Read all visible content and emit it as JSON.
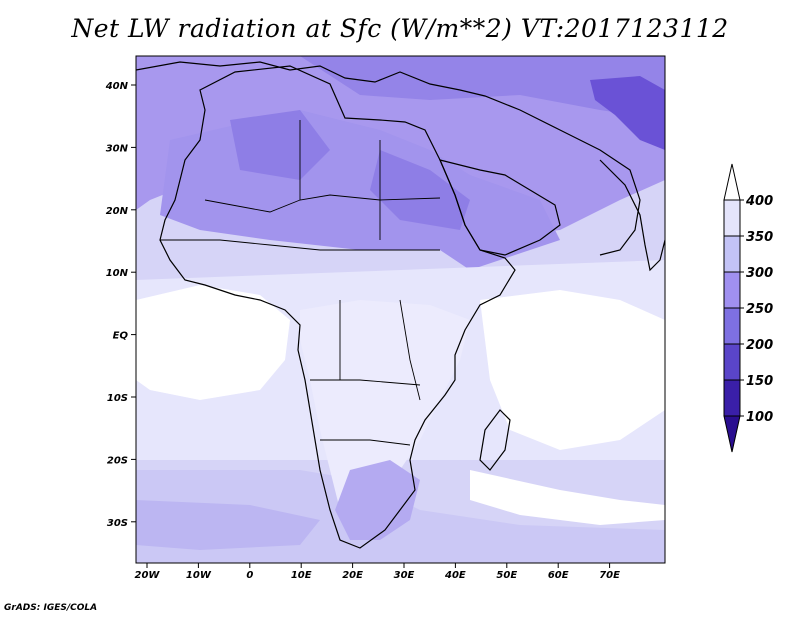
{
  "title": "Net LW radiation at Sfc (W/m**2) VT:2017123112",
  "credit": "GrADS: IGES/COLA",
  "map": {
    "lon_labels": [
      "20W",
      "10W",
      "0",
      "10E",
      "20E",
      "30E",
      "40E",
      "50E",
      "60E",
      "70E"
    ],
    "lat_labels": [
      "40N",
      "30N",
      "20N",
      "10N",
      "EQ",
      "10S",
      "20S",
      "30S"
    ]
  },
  "colorbar": {
    "labels": [
      "400",
      "350",
      "300",
      "250",
      "200",
      "150",
      "100"
    ],
    "colors": [
      "#ffffff",
      "#e4e4fb",
      "#c3c3f6",
      "#a090f0",
      "#7e70e2",
      "#5a45c9",
      "#3a1fa8",
      "#2a0e90"
    ]
  },
  "colors": {
    "land": "#b0a6f0",
    "ocean_light": "#e8e8fc",
    "ocean_white": "#ffffff",
    "dark_region": "#6048d0"
  }
}
